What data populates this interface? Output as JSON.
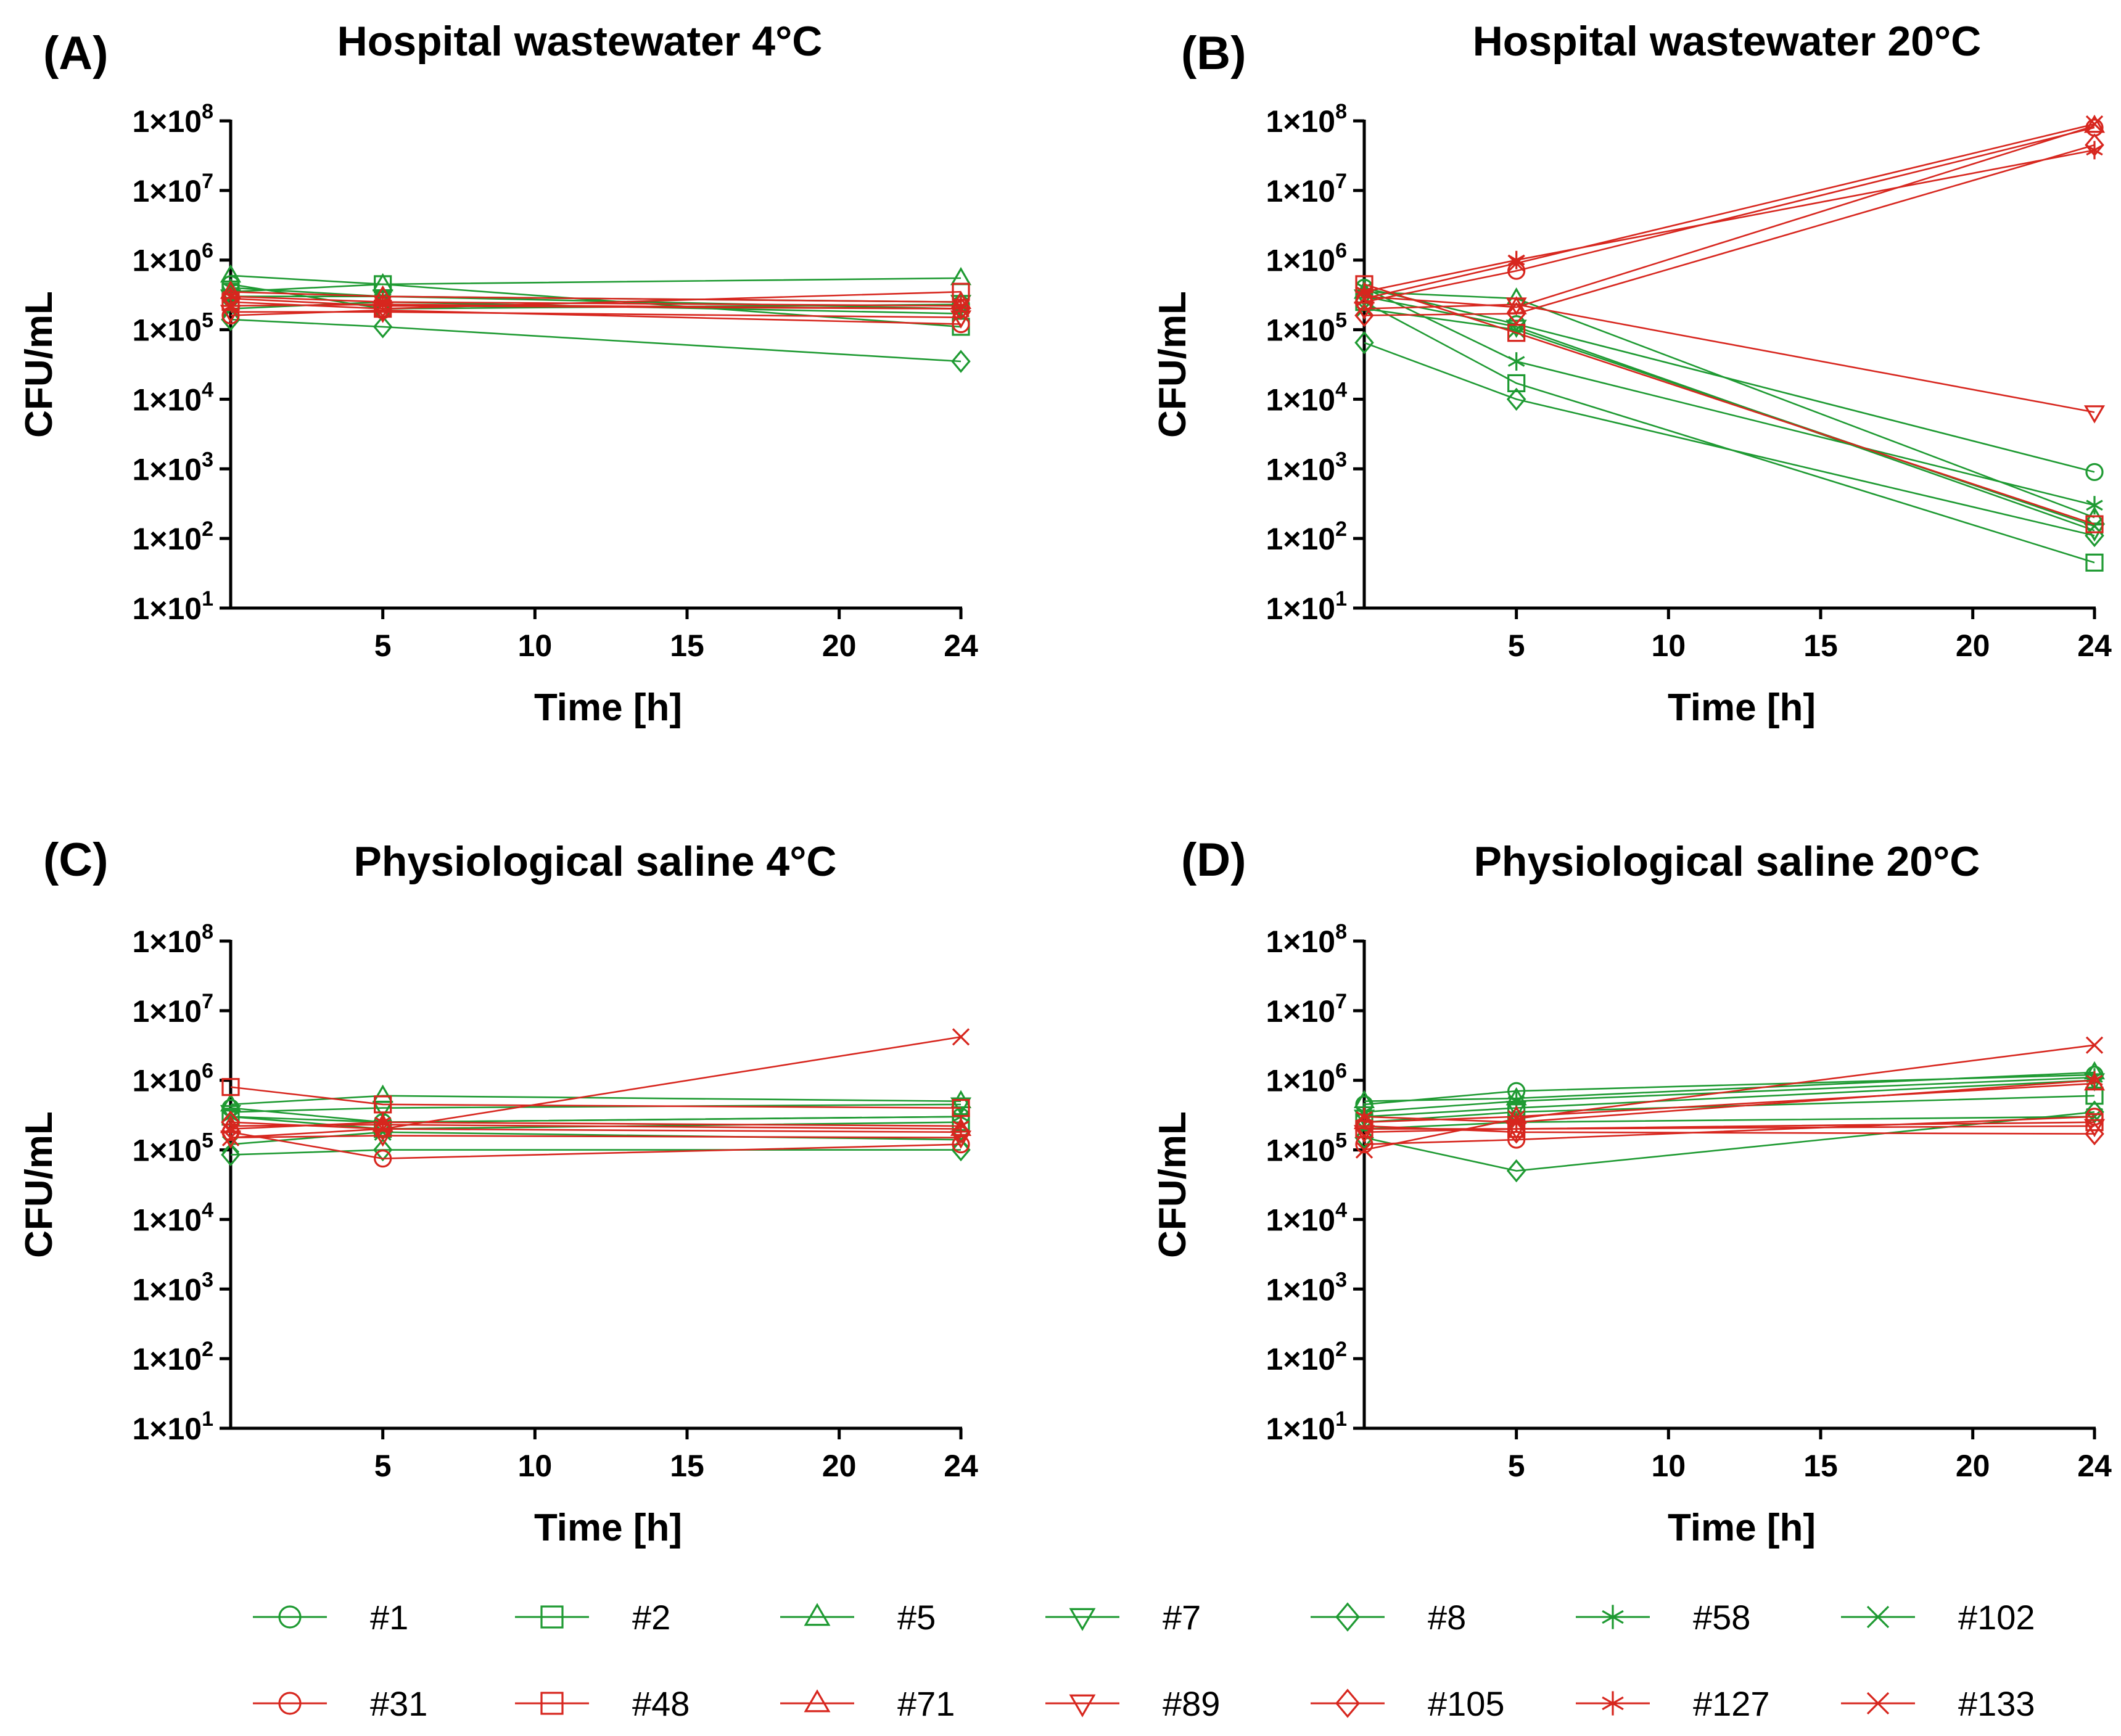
{
  "chart_data": [
    {
      "type": "line",
      "panel_label": "(A)",
      "title": "Hospital wastewater 4°C",
      "xlabel": "Time [h]",
      "ylabel": "CFU/mL",
      "yscale": "log",
      "xlim": [
        0,
        24
      ],
      "ylim": [
        10,
        100000000
      ],
      "x_ticks": [
        "5",
        "10",
        "15",
        "20",
        "24"
      ],
      "y_ticks": [
        "1×10^1",
        "1×10^2",
        "1×10^3",
        "1×10^4",
        "1×10^5",
        "1×10^6",
        "1×10^7",
        "1×10^8"
      ],
      "x": [
        0,
        5,
        24
      ],
      "series": [
        {
          "name": "#1",
          "values": [
            450000,
            200000,
            230000
          ]
        },
        {
          "name": "#2",
          "values": [
            350000,
            450000,
            110000
          ]
        },
        {
          "name": "#5",
          "values": [
            600000,
            450000,
            550000
          ]
        },
        {
          "name": "#7",
          "values": [
            300000,
            300000,
            250000
          ]
        },
        {
          "name": "#8",
          "values": [
            140000,
            110000,
            35000
          ]
        },
        {
          "name": "#58",
          "values": [
            400000,
            300000,
            200000
          ]
        },
        {
          "name": "#102",
          "values": [
            200000,
            250000,
            170000
          ]
        },
        {
          "name": "#31",
          "values": [
            160000,
            190000,
            120000
          ]
        },
        {
          "name": "#48",
          "values": [
            250000,
            200000,
            350000
          ]
        },
        {
          "name": "#71",
          "values": [
            350000,
            300000,
            250000
          ]
        },
        {
          "name": "#89",
          "values": [
            180000,
            180000,
            150000
          ]
        },
        {
          "name": "#105",
          "values": [
            280000,
            220000,
            200000
          ]
        },
        {
          "name": "#127",
          "values": [
            300000,
            250000,
            220000
          ]
        },
        {
          "name": "#133",
          "values": [
            220000,
            230000,
            200000
          ]
        }
      ]
    },
    {
      "type": "line",
      "panel_label": "(B)",
      "title": "Hospital wastewater 20°C",
      "xlabel": "Time [h]",
      "ylabel": "CFU/mL",
      "yscale": "log",
      "xlim": [
        0,
        24
      ],
      "ylim": [
        10,
        100000000
      ],
      "x_ticks": [
        "5",
        "10",
        "15",
        "20",
        "24"
      ],
      "y_ticks": [
        "1×10^1",
        "1×10^2",
        "1×10^3",
        "1×10^4",
        "1×10^5",
        "1×10^6",
        "1×10^7",
        "1×10^8"
      ],
      "x": [
        0,
        5,
        24
      ],
      "series": [
        {
          "name": "#1",
          "values": [
            400000,
            120000,
            900
          ]
        },
        {
          "name": "#2",
          "values": [
            250000,
            17000,
            45
          ]
        },
        {
          "name": "#5",
          "values": [
            350000,
            280000,
            200
          ]
        },
        {
          "name": "#7",
          "values": [
            300000,
            110000,
            130
          ]
        },
        {
          "name": "#8",
          "values": [
            65000,
            10000,
            110
          ]
        },
        {
          "name": "#58",
          "values": [
            400000,
            35000,
            300
          ]
        },
        {
          "name": "#102",
          "values": [
            200000,
            100000,
            150
          ]
        },
        {
          "name": "#31",
          "values": [
            250000,
            700000,
            80000000
          ]
        },
        {
          "name": "#48",
          "values": [
            450000,
            90000,
            160
          ]
        },
        {
          "name": "#71",
          "values": [
            300000,
            210000,
            85000000
          ]
        },
        {
          "name": "#89",
          "values": [
            200000,
            230000,
            6500
          ]
        },
        {
          "name": "#105",
          "values": [
            160000,
            170000,
            45000000
          ]
        },
        {
          "name": "#127",
          "values": [
            350000,
            1000000,
            38000000
          ]
        },
        {
          "name": "#133",
          "values": [
            280000,
            900000,
            90000000
          ]
        }
      ]
    },
    {
      "type": "line",
      "panel_label": "(C)",
      "title": "Physiological saline 4°C",
      "xlabel": "Time [h]",
      "ylabel": "CFU/mL",
      "yscale": "log",
      "xlim": [
        0,
        24
      ],
      "ylim": [
        10,
        100000000
      ],
      "x_ticks": [
        "5",
        "10",
        "15",
        "20",
        "24"
      ],
      "y_ticks": [
        "1×10^1",
        "1×10^2",
        "1×10^3",
        "1×10^4",
        "1×10^5",
        "1×10^6",
        "1×10^7",
        "1×10^8"
      ],
      "x": [
        0,
        5,
        24
      ],
      "series": [
        {
          "name": "#1",
          "values": [
            400000,
            250000,
            300000
          ]
        },
        {
          "name": "#2",
          "values": [
            300000,
            200000,
            250000
          ]
        },
        {
          "name": "#5",
          "values": [
            450000,
            600000,
            500000
          ]
        },
        {
          "name": "#7",
          "values": [
            350000,
            400000,
            450000
          ]
        },
        {
          "name": "#8",
          "values": [
            85000,
            100000,
            100000
          ]
        },
        {
          "name": "#58",
          "values": [
            300000,
            250000,
            300000
          ]
        },
        {
          "name": "#102",
          "values": [
            120000,
            180000,
            140000
          ]
        },
        {
          "name": "#31",
          "values": [
            180000,
            75000,
            120000
          ]
        },
        {
          "name": "#48",
          "values": [
            800000,
            450000,
            400000
          ]
        },
        {
          "name": "#71",
          "values": [
            220000,
            230000,
            200000
          ]
        },
        {
          "name": "#89",
          "values": [
            150000,
            160000,
            150000
          ]
        },
        {
          "name": "#105",
          "values": [
            250000,
            200000,
            180000
          ]
        },
        {
          "name": "#127",
          "values": [
            200000,
            250000,
            220000
          ]
        },
        {
          "name": "#133",
          "values": [
            150000,
            200000,
            4200000
          ]
        }
      ]
    },
    {
      "type": "line",
      "panel_label": "(D)",
      "title": "Physiological saline 20°C",
      "xlabel": "Time [h]",
      "ylabel": "CFU/mL",
      "yscale": "log",
      "xlim": [
        0,
        24
      ],
      "ylim": [
        10,
        100000000
      ],
      "x_ticks": [
        "5",
        "10",
        "15",
        "20",
        "24"
      ],
      "y_ticks": [
        "1×10^1",
        "1×10^2",
        "1×10^3",
        "1×10^4",
        "1×10^5",
        "1×10^6",
        "1×10^7",
        "1×10^8"
      ],
      "x": [
        0,
        5,
        24
      ],
      "series": [
        {
          "name": "#1",
          "values": [
            450000,
            700000,
            1200000
          ]
        },
        {
          "name": "#2",
          "values": [
            250000,
            350000,
            600000
          ]
        },
        {
          "name": "#5",
          "values": [
            500000,
            550000,
            1300000
          ]
        },
        {
          "name": "#7",
          "values": [
            300000,
            400000,
            1000000
          ]
        },
        {
          "name": "#8",
          "values": [
            150000,
            50000,
            350000
          ]
        },
        {
          "name": "#58",
          "values": [
            350000,
            500000,
            1100000
          ]
        },
        {
          "name": "#102",
          "values": [
            200000,
            250000,
            300000
          ]
        },
        {
          "name": "#31",
          "values": [
            120000,
            140000,
            300000
          ]
        },
        {
          "name": "#48",
          "values": [
            200000,
            200000,
            250000
          ]
        },
        {
          "name": "#71",
          "values": [
            250000,
            300000,
            900000
          ]
        },
        {
          "name": "#89",
          "values": [
            180000,
            200000,
            220000
          ]
        },
        {
          "name": "#105",
          "values": [
            220000,
            180000,
            170000
          ]
        },
        {
          "name": "#127",
          "values": [
            300000,
            250000,
            1000000
          ]
        },
        {
          "name": "#133",
          "values": [
            100000,
            280000,
            3200000
          ]
        }
      ]
    }
  ],
  "legend": {
    "placement": "bottom",
    "items": [
      {
        "label": "#1",
        "marker": "circle",
        "color": "#1e9a32"
      },
      {
        "label": "#2",
        "marker": "square",
        "color": "#1e9a32"
      },
      {
        "label": "#5",
        "marker": "triangle-up",
        "color": "#1e9a32"
      },
      {
        "label": "#7",
        "marker": "triangle-down",
        "color": "#1e9a32"
      },
      {
        "label": "#8",
        "marker": "diamond",
        "color": "#1e9a32"
      },
      {
        "label": "#58",
        "marker": "asterisk",
        "color": "#1e9a32"
      },
      {
        "label": "#102",
        "marker": "x",
        "color": "#1e9a32"
      },
      {
        "label": "#31",
        "marker": "circle",
        "color": "#d7261e"
      },
      {
        "label": "#48",
        "marker": "square",
        "color": "#d7261e"
      },
      {
        "label": "#71",
        "marker": "triangle-up",
        "color": "#d7261e"
      },
      {
        "label": "#89",
        "marker": "triangle-down",
        "color": "#d7261e"
      },
      {
        "label": "#105",
        "marker": "diamond",
        "color": "#d7261e"
      },
      {
        "label": "#127",
        "marker": "asterisk",
        "color": "#d7261e"
      },
      {
        "label": "#133",
        "marker": "x",
        "color": "#d7261e"
      }
    ]
  },
  "colors": {
    "green": "#1e9a32",
    "red": "#d7261e",
    "axis": "#000000"
  }
}
